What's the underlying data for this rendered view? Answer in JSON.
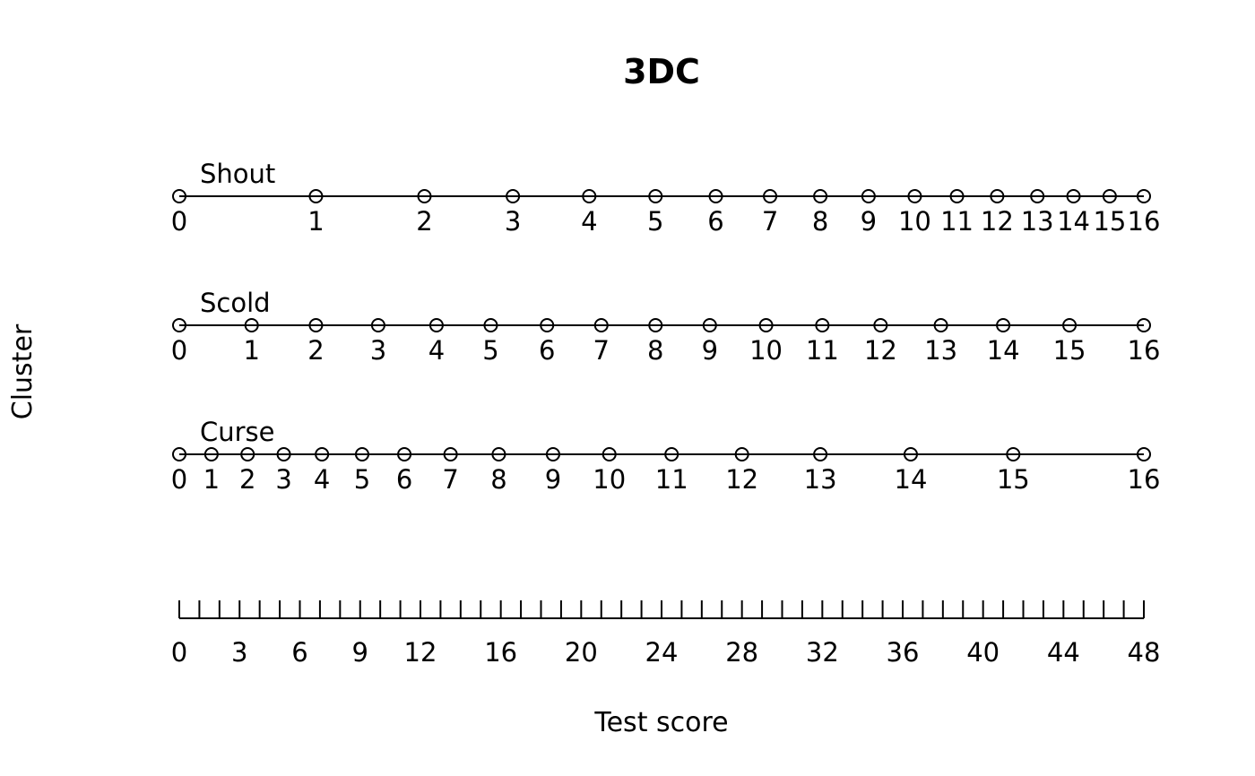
{
  "chart_data": {
    "type": "scatter",
    "title": "3DC",
    "xlabel": "Test score",
    "ylabel": "Cluster",
    "xlim": [
      0,
      48
    ],
    "axis": {
      "ticks": [
        0,
        1,
        2,
        3,
        4,
        5,
        6,
        7,
        8,
        9,
        10,
        11,
        12,
        13,
        14,
        15,
        16,
        17,
        18,
        19,
        20,
        21,
        22,
        23,
        24,
        25,
        26,
        27,
        28,
        29,
        30,
        31,
        32,
        33,
        34,
        35,
        36,
        37,
        38,
        39,
        40,
        41,
        42,
        43,
        44,
        45,
        46,
        47,
        48
      ],
      "tick_labels": [
        {
          "value": 0,
          "label": "0"
        },
        {
          "value": 3,
          "label": "3"
        },
        {
          "value": 6,
          "label": "6"
        },
        {
          "value": 9,
          "label": "9"
        },
        {
          "value": 12,
          "label": "12"
        },
        {
          "value": 16,
          "label": "16"
        },
        {
          "value": 20,
          "label": "20"
        },
        {
          "value": 24,
          "label": "24"
        },
        {
          "value": 28,
          "label": "28"
        },
        {
          "value": 32,
          "label": "32"
        },
        {
          "value": 36,
          "label": "36"
        },
        {
          "value": 40,
          "label": "40"
        },
        {
          "value": 44,
          "label": "44"
        },
        {
          "value": 48,
          "label": "48"
        }
      ]
    },
    "series": [
      {
        "name": "Shout",
        "scores": [
          "0",
          "1",
          "2",
          "3",
          "4",
          "5",
          "6",
          "7",
          "8",
          "9",
          "10",
          "11",
          "12",
          "13",
          "14",
          "15",
          "16"
        ],
        "x": [
          0,
          6.8,
          12.2,
          16.6,
          20.4,
          23.7,
          26.7,
          29.4,
          31.9,
          34.3,
          36.6,
          38.7,
          40.7,
          42.7,
          44.5,
          46.3,
          48
        ]
      },
      {
        "name": "Scold",
        "scores": [
          "0",
          "1",
          "2",
          "3",
          "4",
          "5",
          "6",
          "7",
          "8",
          "9",
          "10",
          "11",
          "12",
          "13",
          "14",
          "15",
          "16"
        ],
        "x": [
          0,
          3.6,
          6.8,
          9.9,
          12.8,
          15.5,
          18.3,
          21.0,
          23.7,
          26.4,
          29.2,
          32.0,
          34.9,
          37.9,
          41.0,
          44.3,
          48
        ]
      },
      {
        "name": "Curse",
        "scores": [
          "0",
          "1",
          "2",
          "3",
          "4",
          "5",
          "6",
          "7",
          "8",
          "9",
          "10",
          "11",
          "12",
          "13",
          "14",
          "15",
          "16"
        ],
        "x": [
          0,
          1.6,
          3.4,
          5.2,
          7.1,
          9.1,
          11.2,
          13.5,
          15.9,
          18.6,
          21.4,
          24.5,
          28.0,
          31.9,
          36.4,
          41.5,
          48
        ]
      }
    ]
  }
}
